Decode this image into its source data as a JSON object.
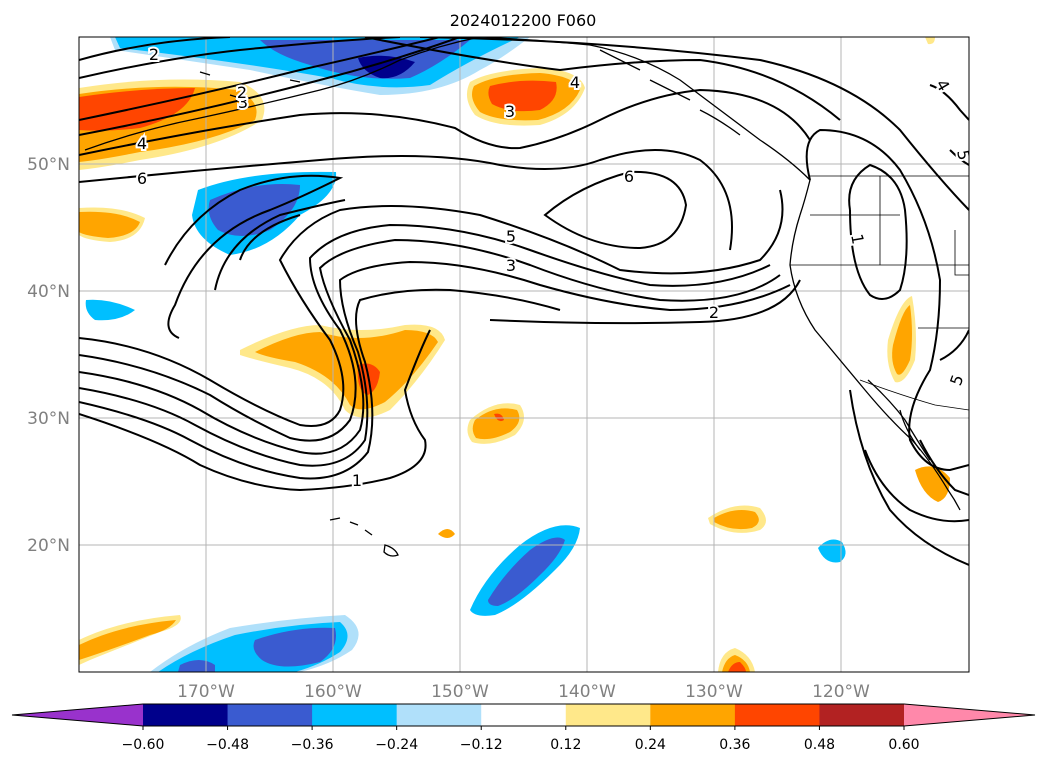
{
  "title": "2024012200 F060",
  "lat_labels": [
    "50°N",
    "40°N",
    "30°N",
    "20°N"
  ],
  "lon_labels": [
    "170°W",
    "160°W",
    "150°W",
    "140°W",
    "130°W",
    "120°W"
  ],
  "contour_labels": [
    "2",
    "3",
    "4",
    "2",
    "3",
    "4",
    "6",
    "6",
    "5",
    "3",
    "2",
    "1",
    "1",
    "5",
    "4",
    "5"
  ],
  "colorbar": {
    "ticks": [
      "−0.60",
      "−0.48",
      "−0.36",
      "−0.24",
      "−0.12",
      "0.12",
      "0.24",
      "0.36",
      "0.48",
      "0.60"
    ],
    "colors": [
      "#9932cc",
      "#00008b",
      "#3a5bd0",
      "#00bfff",
      "#b0e0fa",
      "#ffffff",
      "#ffe88a",
      "#ffa500",
      "#ff4500",
      "#b22222",
      "#ff88aa"
    ]
  }
}
